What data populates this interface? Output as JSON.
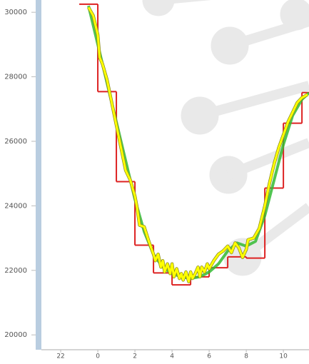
{
  "chart_data": {
    "type": "line",
    "xlim": [
      -3.04,
      11.38
    ],
    "xticks": [
      {
        "value": -2,
        "label": "22"
      },
      0,
      2,
      4,
      6,
      8,
      10
    ],
    "ylim": [
      19540,
      30380
    ],
    "yticks": [
      20000,
      22000,
      24000,
      26000,
      28000,
      30000
    ],
    "series": [
      {
        "color": "#dd2222",
        "step": true,
        "x": [
          -1,
          0,
          1,
          2,
          3,
          4,
          5,
          6,
          7,
          8,
          9,
          10,
          11
        ],
        "values": [
          30250,
          27540,
          24750,
          22780,
          21920,
          21550,
          21800,
          22080,
          22420,
          22380,
          24550,
          26560,
          27510
        ]
      },
      {
        "color": "#33bb33",
        "step": false,
        "x": [
          -0.5,
          0,
          0.5,
          1,
          1.5,
          2,
          2.5,
          3,
          3.5,
          4,
          4.5,
          5,
          5.5,
          6,
          6.5,
          7,
          7.5,
          8,
          8.5,
          9,
          9.5,
          10,
          10.5,
          11,
          11.38
        ],
        "values": [
          30200,
          29000,
          27800,
          26600,
          25400,
          24200,
          23200,
          22500,
          22100,
          21900,
          21800,
          21750,
          21800,
          21950,
          22200,
          22600,
          22850,
          22750,
          22900,
          23700,
          24800,
          25900,
          26800,
          27300,
          27500
        ]
      },
      {
        "color": "#ffff00",
        "step": false,
        "x": [
          -0.5,
          -0.25,
          0,
          0.1,
          0.25,
          0.5,
          0.75,
          1,
          1.25,
          1.5,
          1.75,
          2,
          2.1,
          2.25,
          2.5,
          2.75,
          3,
          3.1,
          3.25,
          3.4,
          3.5,
          3.6,
          3.75,
          3.9,
          4,
          4.1,
          4.25,
          4.4,
          4.5,
          4.6,
          4.75,
          4.9,
          5,
          5.1,
          5.25,
          5.4,
          5.5,
          5.6,
          5.75,
          5.9,
          6,
          6.25,
          6.5,
          6.75,
          7,
          7.2,
          7.4,
          7.6,
          7.8,
          8,
          8.1,
          8.4,
          8.7,
          9,
          9.25,
          9.5,
          9.75,
          10,
          10.25,
          10.5,
          10.75,
          11,
          11.3
        ],
        "values": [
          30150,
          29900,
          29300,
          28600,
          28400,
          27900,
          27200,
          26500,
          25800,
          25100,
          24800,
          24300,
          24000,
          23400,
          23350,
          22900,
          22500,
          22300,
          22500,
          22100,
          22300,
          21950,
          22200,
          21900,
          22200,
          21800,
          22050,
          21750,
          21900,
          21700,
          21950,
          21650,
          21950,
          21750,
          21900,
          22100,
          21800,
          22100,
          21950,
          22200,
          22050,
          22300,
          22500,
          22600,
          22750,
          22550,
          22850,
          22700,
          22400,
          22650,
          22950,
          23000,
          23300,
          24000,
          24700,
          25300,
          25800,
          26200,
          26600,
          26900,
          27200,
          27350,
          27450
        ]
      }
    ]
  }
}
